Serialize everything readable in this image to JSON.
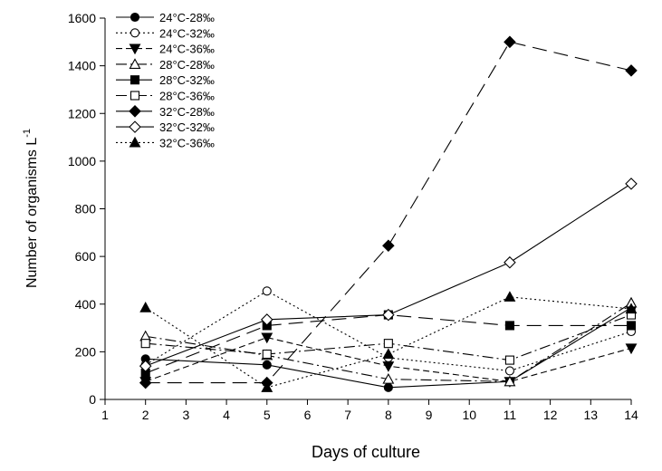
{
  "chart_data": {
    "type": "line",
    "title": "",
    "xlabel": "Days of culture",
    "ylabel": "Number of organisms L",
    "ylabel_superscript": "-1",
    "xlim": [
      1,
      14
    ],
    "ylim": [
      0,
      1600
    ],
    "x_ticks": [
      1,
      2,
      3,
      4,
      5,
      6,
      7,
      8,
      9,
      10,
      11,
      12,
      13,
      14
    ],
    "y_ticks": [
      0,
      200,
      400,
      600,
      800,
      1000,
      1200,
      1400,
      1600
    ],
    "grid": false,
    "legend_position": "top-left",
    "x": [
      2,
      5,
      8,
      11,
      14
    ],
    "series": [
      {
        "name": "24°C-28‰",
        "marker": "circle",
        "filled": true,
        "line": "solid",
        "values": [
          170,
          145,
          50,
          75,
          385
        ]
      },
      {
        "name": "24°C-32‰",
        "marker": "circle",
        "filled": false,
        "line": "dotted",
        "values": [
          145,
          455,
          175,
          120,
          285
        ]
      },
      {
        "name": "24°C-36‰",
        "marker": "triangle-down",
        "filled": true,
        "line": "dashed-short",
        "values": [
          75,
          260,
          140,
          75,
          215
        ]
      },
      {
        "name": "28°C-28‰",
        "marker": "triangle-up",
        "filled": false,
        "line": "dashdot",
        "values": [
          265,
          185,
          85,
          75,
          405
        ]
      },
      {
        "name": "28°C-32‰",
        "marker": "square",
        "filled": true,
        "line": "dashed-long",
        "values": [
          110,
          310,
          355,
          310,
          310
        ]
      },
      {
        "name": "28°C-36‰",
        "marker": "square",
        "filled": false,
        "line": "dashdot",
        "values": [
          235,
          190,
          235,
          165,
          355
        ]
      },
      {
        "name": "32°C-28‰",
        "marker": "diamond",
        "filled": true,
        "line": "dashed-long",
        "values": [
          70,
          70,
          645,
          1500,
          1380
        ]
      },
      {
        "name": "32°C-32‰",
        "marker": "diamond",
        "filled": false,
        "line": "solid",
        "values": [
          140,
          335,
          355,
          575,
          905
        ]
      },
      {
        "name": "32°C-36‰",
        "marker": "triangle-up",
        "filled": true,
        "line": "dotted",
        "values": [
          385,
          50,
          190,
          430,
          380
        ]
      }
    ]
  }
}
